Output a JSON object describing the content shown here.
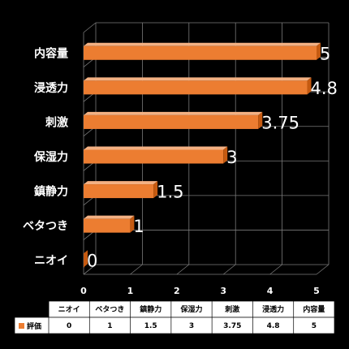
{
  "chart_data": {
    "type": "bar",
    "orientation": "horizontal",
    "style": "3d",
    "categories": [
      "ニオイ",
      "ベタつき",
      "鎮静力",
      "保湿力",
      "刺激",
      "浸透力",
      "内容量"
    ],
    "series": [
      {
        "name": "評価",
        "values": [
          0,
          1,
          1.5,
          3,
          3.75,
          4.8,
          5
        ],
        "value_labels": [
          "0",
          "1",
          "1.5",
          "3",
          "3.75",
          "4.8",
          "5"
        ],
        "color": "#ec7d31"
      }
    ],
    "xlim": [
      0,
      5
    ],
    "xticks": [
      "0",
      "1",
      "2",
      "3",
      "4",
      "5"
    ],
    "grid": true,
    "legend_placement": "data-table-bottom",
    "data_table": {
      "headers": [
        "ニオイ",
        "ベタつき",
        "鎮静力",
        "保湿力",
        "刺激",
        "浸透力",
        "内容量"
      ],
      "row_label": "評価",
      "values": [
        "0",
        "1",
        "1.5",
        "3",
        "3.75",
        "4.8",
        "5"
      ]
    }
  },
  "colors": {
    "background": "#000000",
    "bar": "#ec7d31",
    "bar_top": "#f4b183",
    "bar_side": "#c55a11",
    "grid": "#7a7a7a",
    "text": "#ffffff",
    "table_bg": "#ffffff"
  }
}
